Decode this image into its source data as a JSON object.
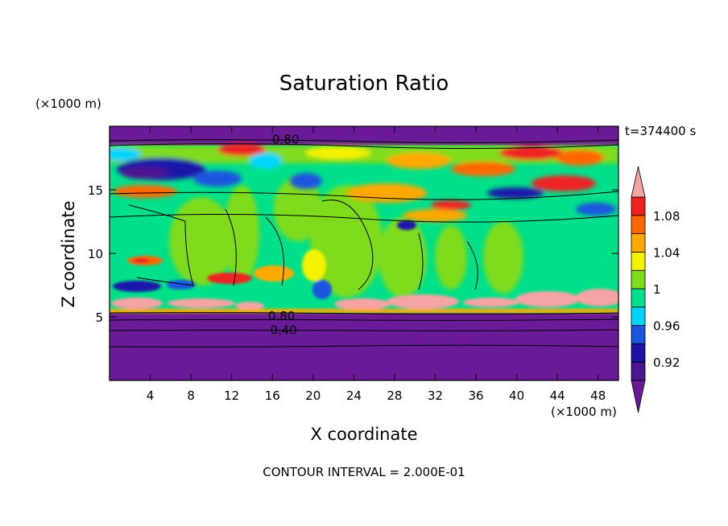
{
  "chart_data": {
    "type": "heatmap",
    "title": "Saturation Ratio",
    "xlabel": "X coordinate",
    "ylabel": "Z coordinate",
    "x_unit": "(×1000 m)",
    "y_unit": "(×1000 m)",
    "time_label": "t=374400 s",
    "contour_interval": "CONTOUR INTERVAL = 2.000E-01",
    "xlim": [
      0,
      50
    ],
    "ylim": [
      0,
      20
    ],
    "x_ticks": [
      "4",
      "8",
      "12",
      "16",
      "20",
      "24",
      "28",
      "32",
      "36",
      "40",
      "44",
      "48"
    ],
    "x_tick_values": [
      4,
      8,
      12,
      16,
      20,
      24,
      28,
      32,
      36,
      40,
      44,
      48
    ],
    "y_ticks": [
      "5",
      "10",
      "15"
    ],
    "y_tick_values": [
      5,
      10,
      15
    ],
    "contour_labels": [
      {
        "text": "0.80",
        "x": 17.3,
        "y": 18.9
      },
      {
        "text": "0.80",
        "x": 16.9,
        "y": 5.0
      },
      {
        "text": "0.40",
        "x": 17.1,
        "y": 3.9
      }
    ],
    "colorbar": {
      "levels": [
        0.9,
        0.92,
        0.94,
        0.96,
        0.98,
        1.0,
        1.02,
        1.04,
        1.06,
        1.08,
        1.1
      ],
      "tick_labels": [
        "0.92",
        "0.96",
        "1",
        "1.04",
        "1.08"
      ],
      "tick_values": [
        0.92,
        0.96,
        1.0,
        1.04,
        1.08
      ],
      "colors": [
        "#4b1590",
        "#1a15a8",
        "#1a55e0",
        "#00d5ff",
        "#00e08a",
        "#7fdc1a",
        "#f5f200",
        "#ffa800",
        "#ff6600",
        "#ef2020"
      ],
      "under_color": "#6a1a96",
      "over_color": "#f5a3a3"
    },
    "regions": [
      {
        "z": [
          0,
          5.3
        ],
        "value": "below 0.90",
        "color": "#6a1a96"
      },
      {
        "z": [
          18.5,
          20
        ],
        "value": "below 0.90",
        "color": "#6a1a96"
      }
    ]
  }
}
